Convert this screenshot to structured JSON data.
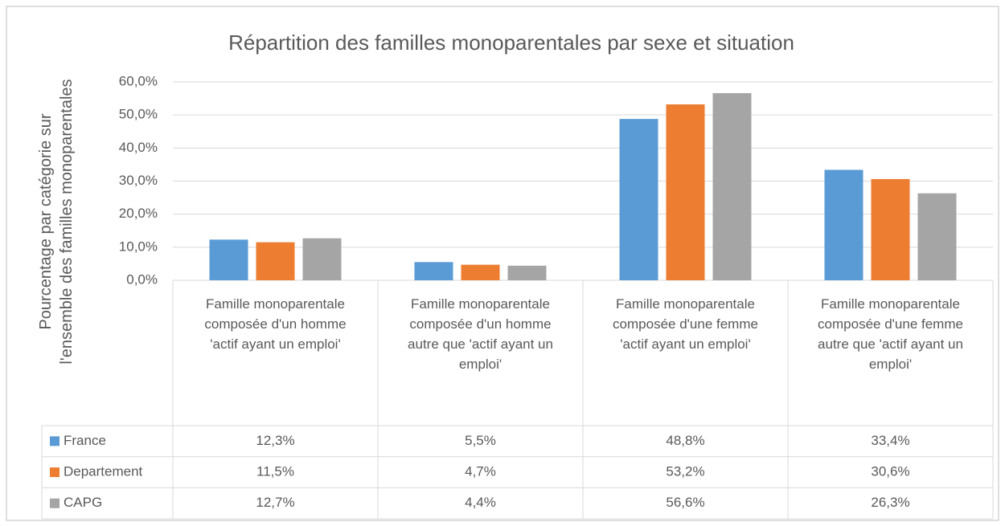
{
  "chart_data": {
    "type": "bar",
    "title": "Répartition des familles monoparentales par sexe et situation",
    "y_label": [
      "Pourcentage par catégorie sur",
      "l'ensemble des familles monoparentales"
    ],
    "categories": [
      "Famille monoparentale composée d'un homme 'actif ayant un emploi'",
      "Famille monoparentale composée d'un homme autre que 'actif ayant un emploi'",
      "Famille monoparentale composée d'une femme 'actif ayant un emploi'",
      "Famille monoparentale composée d'une femme autre que 'actif ayant un emploi'"
    ],
    "series": [
      {
        "name": "France",
        "color": "#5b9bd5",
        "values": [
          12.3,
          5.5,
          48.8,
          33.4
        ],
        "value_labels": [
          "12,3%",
          "5,5%",
          "48,8%",
          "33,4%"
        ]
      },
      {
        "name": "Departement",
        "color": "#ed7d31",
        "values": [
          11.5,
          4.7,
          53.2,
          30.6
        ],
        "value_labels": [
          "11,5%",
          "4,7%",
          "53,2%",
          "30,6%"
        ]
      },
      {
        "name": "CAPG",
        "color": "#a5a5a5",
        "values": [
          12.7,
          4.4,
          56.6,
          26.3
        ],
        "value_labels": [
          "12,7%",
          "4,4%",
          "56,6%",
          "26,3%"
        ]
      }
    ],
    "ylim": [
      0,
      60
    ],
    "yticks": [
      {
        "value": 0,
        "label": "0,0%"
      },
      {
        "value": 10,
        "label": "10,0%"
      },
      {
        "value": 20,
        "label": "20,0%"
      },
      {
        "value": 30,
        "label": "30,0%"
      },
      {
        "value": 40,
        "label": "40,0%"
      },
      {
        "value": 50,
        "label": "50,0%"
      },
      {
        "value": 60,
        "label": "60,0%"
      }
    ],
    "grid": true
  }
}
